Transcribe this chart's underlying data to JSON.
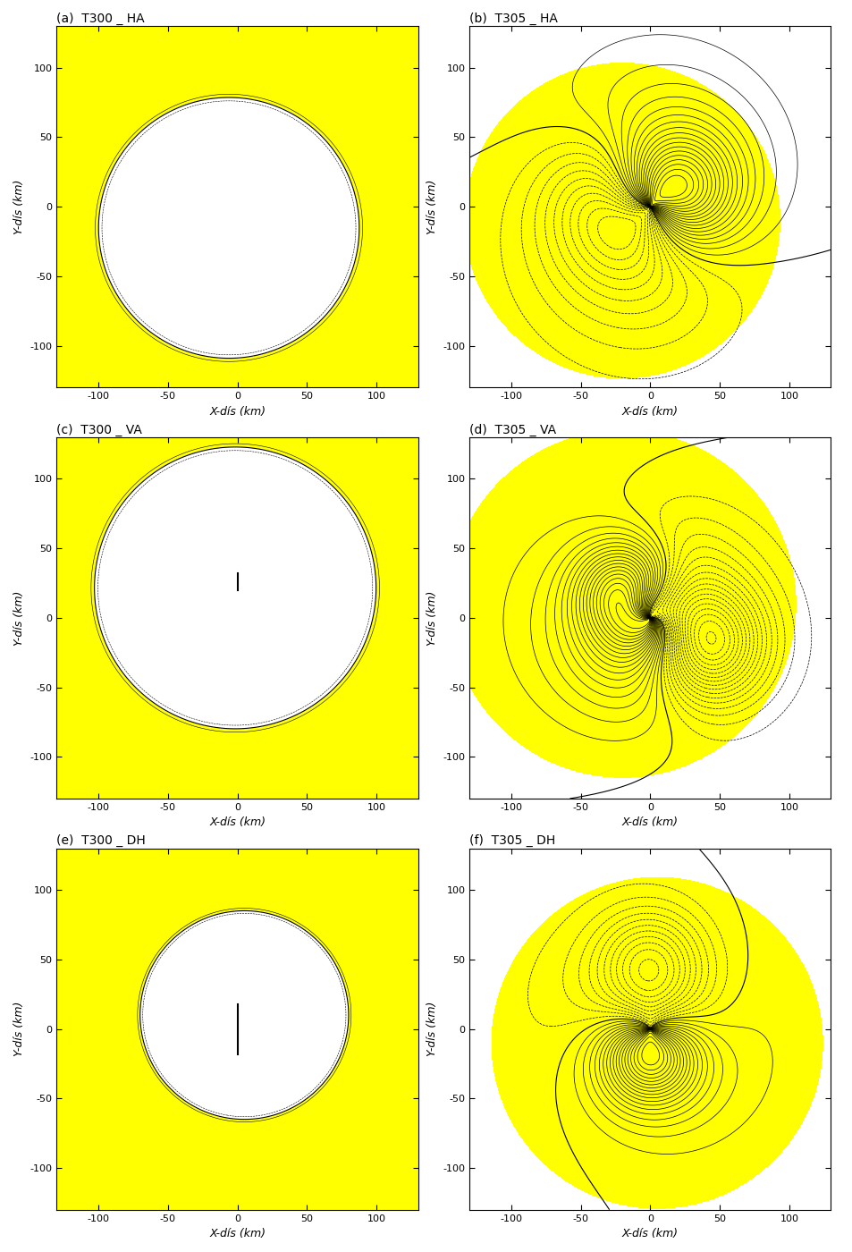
{
  "titles": [
    "(a)  T300 _ HA",
    "(b)  T305 _ HA",
    "(c)  T300 _ VA",
    "(d)  T305 _ VA",
    "(e)  T300 _ DH",
    "(f)  T305 _ DH"
  ],
  "xlabel_left": "X-dís (km)",
  "xlabel_right": "X-dís (km)",
  "ylabel": "Y-dís (km)",
  "xlim": [
    -130,
    130
  ],
  "ylim": [
    -130,
    130
  ],
  "xticks": [
    -100,
    -50,
    0,
    50,
    100
  ],
  "yticks": [
    -100,
    -50,
    0,
    50,
    100
  ],
  "fill_color": "#FFFF00",
  "background_color": "#FFFFFF",
  "figsize": [
    9.54,
    14.0
  ],
  "dpi": 100,
  "n_contours": 18,
  "contour_lw_thin": 0.5,
  "contour_lw_thick": 0.8
}
